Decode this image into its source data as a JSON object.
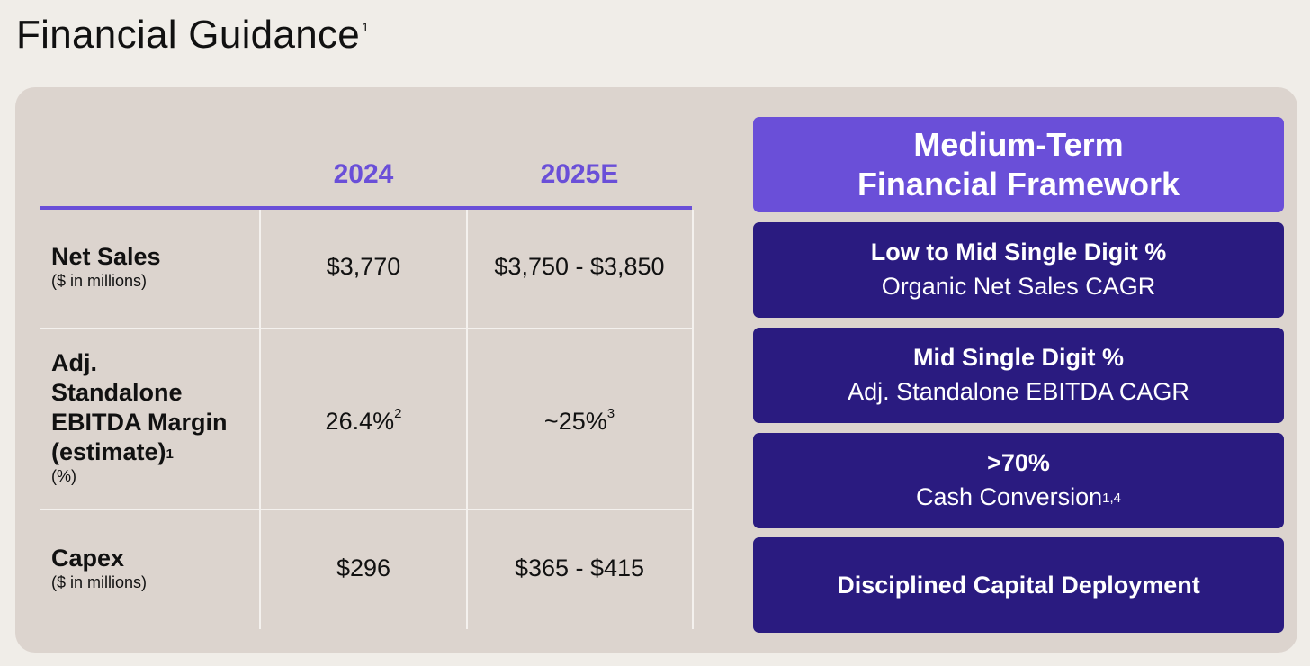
{
  "title": "Financial Guidance",
  "title_footnote": "1",
  "table": {
    "columns": [
      "2024",
      "2025E"
    ],
    "rows": [
      {
        "label_lines": [
          "Net Sales"
        ],
        "label_footnote": "",
        "sub": "($ in millions)",
        "values": [
          "$3,770",
          "$3,750 - $3,850"
        ],
        "value_footnotes": [
          "",
          ""
        ]
      },
      {
        "label_lines": [
          "Adj.",
          "Standalone",
          "EBITDA Margin",
          "(estimate)"
        ],
        "label_footnote": "1",
        "sub": "(%)",
        "values": [
          "26.4%",
          "~25%"
        ],
        "value_footnotes": [
          "2",
          "3"
        ]
      },
      {
        "label_lines": [
          "Capex"
        ],
        "label_footnote": "",
        "sub": "($ in millions)",
        "values": [
          "$296",
          "$365 - $415"
        ],
        "value_footnotes": [
          "",
          ""
        ]
      }
    ]
  },
  "framework": {
    "heading_lines": [
      "Medium-Term",
      "Financial Framework"
    ],
    "items": [
      {
        "bold": "Low to Mid Single Digit %",
        "text": "Organic Net Sales CAGR",
        "footnote": ""
      },
      {
        "bold": "Mid Single Digit %",
        "text": "Adj. Standalone EBITDA CAGR",
        "footnote": ""
      },
      {
        "bold": ">70%",
        "text": "Cash Conversion",
        "footnote": "1,4"
      },
      {
        "bold": "Disciplined Capital Deployment",
        "text": "",
        "footnote": ""
      }
    ]
  },
  "colors": {
    "accent": "#6a4fd8",
    "dark": "#2a1b80",
    "panel": "#dcd4ce",
    "background": "#f0ede8"
  }
}
